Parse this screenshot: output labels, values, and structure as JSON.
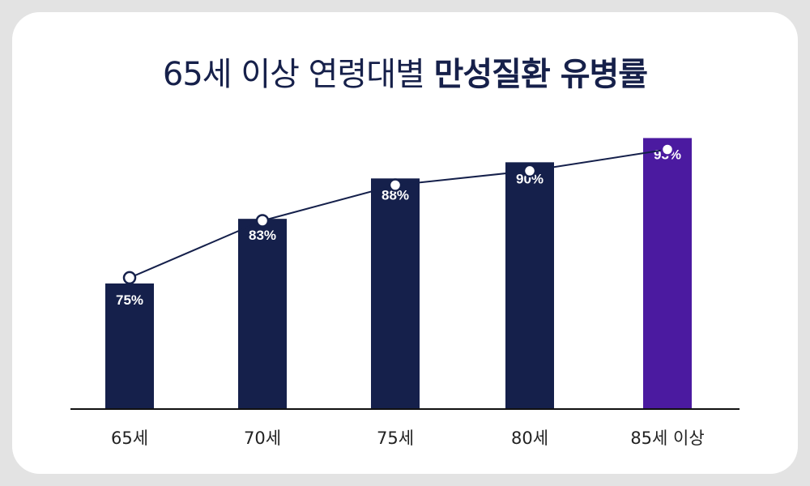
{
  "title": {
    "normal": "65세 이상 연령대별",
    "bold": "만성질환 유병률"
  },
  "colors": {
    "bar": "#15204b",
    "highlight": "#4b1aa0",
    "line": "#15204b",
    "background": "#e3e3e3",
    "card": "#ffffff"
  },
  "chart_data": {
    "type": "bar",
    "title": "65세 이상 연령대별 만성질환 유병률",
    "categories": [
      "65세",
      "70세",
      "75세",
      "80세",
      "85세 이상"
    ],
    "values": [
      75,
      83,
      88,
      90,
      93
    ],
    "value_labels": [
      "75%",
      "83%",
      "88%",
      "90%",
      "93%"
    ],
    "overlay": "line-with-markers",
    "highlight_index": 4,
    "grid": false,
    "legend": "none"
  }
}
